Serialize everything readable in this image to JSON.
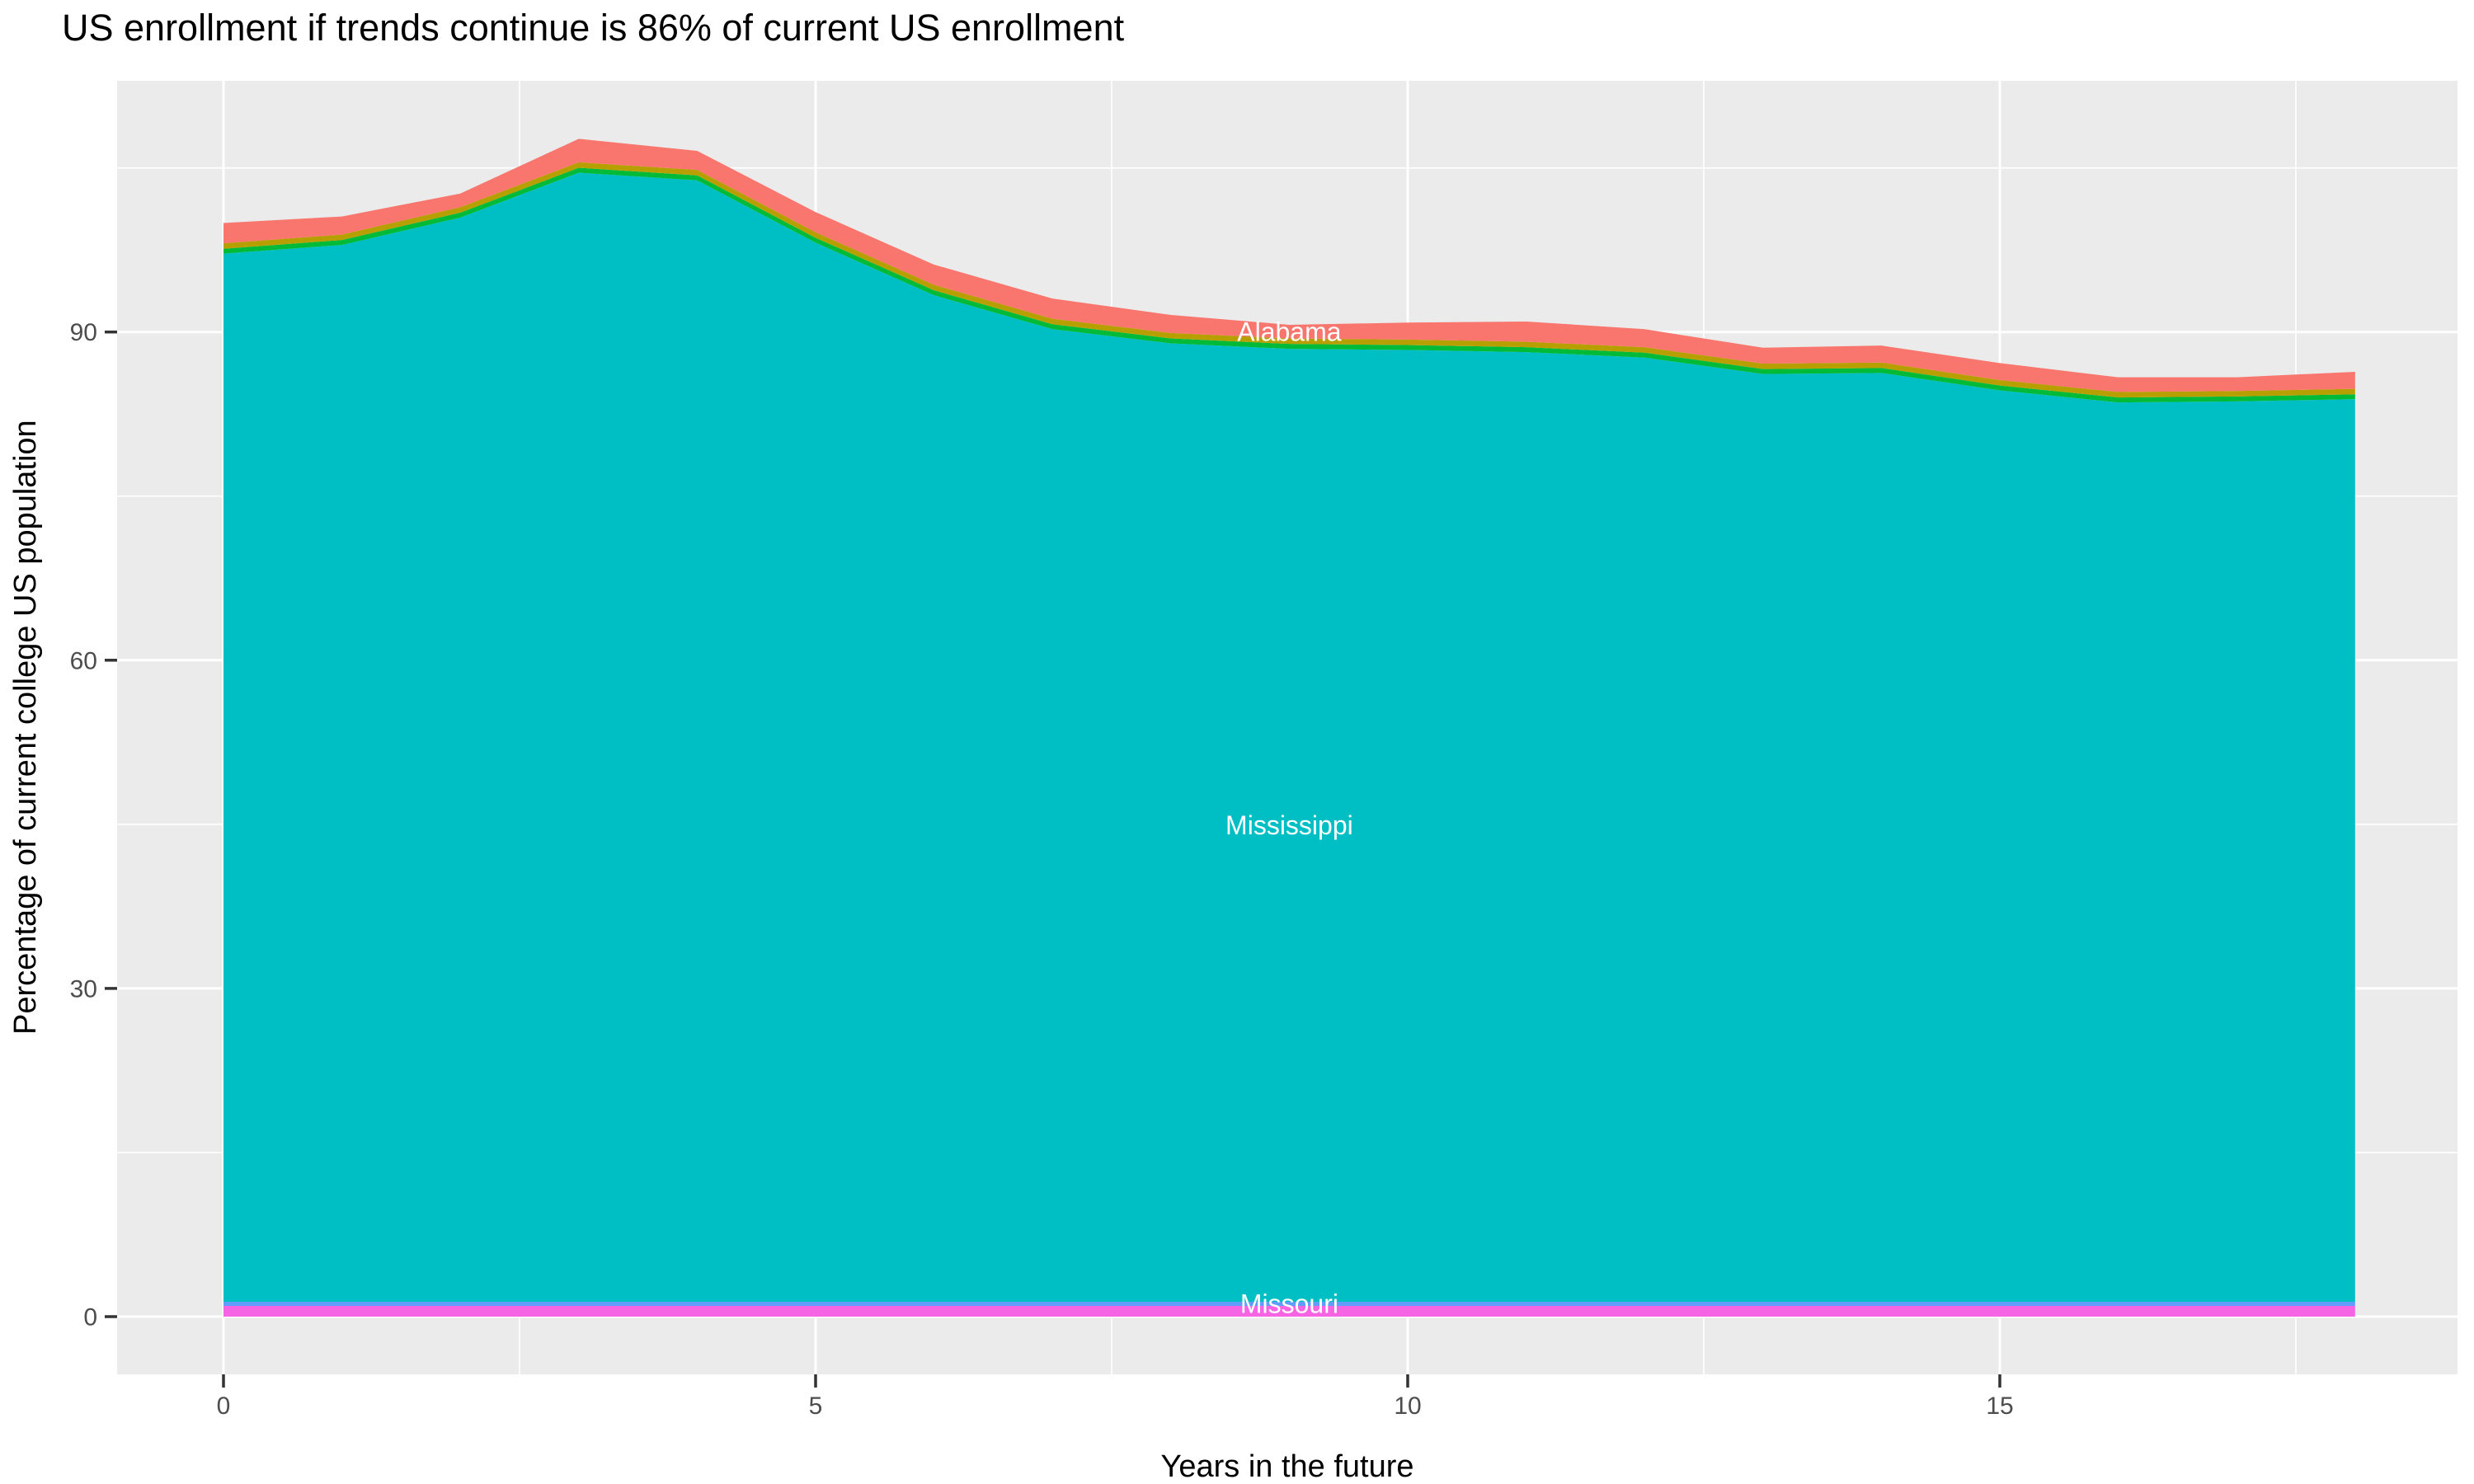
{
  "title": "US enrollment if trends continue is 86% of current US enrollment",
  "axes": {
    "x_tick_labels": [
      "0",
      "5",
      "10",
      "15"
    ],
    "y_tick_labels": [
      "0",
      "30",
      "60",
      "90"
    ]
  },
  "colors": {
    "panel_background": "#EBEBEB",
    "gridline": "#FFFFFF",
    "tick_mark": "#333333",
    "tick_label": "#4D4D4D",
    "title_text": "#000000",
    "area_label_text": "#FFFFFF"
  },
  "chart_data": {
    "type": "area",
    "stacked": true,
    "title": "US enrollment if trends continue is 86% of current US enrollment",
    "xlabel": "Years in the future",
    "ylabel": "Percentage of current college US population",
    "x": [
      0,
      1,
      2,
      3,
      4,
      5,
      6,
      7,
      8,
      9,
      10,
      11,
      12,
      13,
      14,
      15,
      16,
      17,
      18
    ],
    "x_ticks": [
      0,
      5,
      10,
      15
    ],
    "x_minor_ticks": [
      2.5,
      7.5,
      12.5,
      17.5
    ],
    "y_ticks": [
      0,
      30,
      60,
      90
    ],
    "y_minor_ticks": [
      15,
      45,
      75,
      105
    ],
    "xlim": [
      -0.9,
      18.9
    ],
    "ylim": [
      -5.4,
      113.0
    ],
    "grid": true,
    "legend": "none",
    "series": [
      {
        "name": "unlabeled-bottom",
        "label": "",
        "color": "#F564E3",
        "values": [
          0.98,
          0.98,
          0.98,
          0.98,
          0.98,
          0.98,
          0.98,
          0.98,
          0.98,
          0.98,
          0.98,
          0.98,
          0.98,
          0.98,
          0.98,
          0.98,
          0.98,
          0.98,
          0.98
        ]
      },
      {
        "name": "Missouri",
        "label": "Missouri",
        "color": "#619CFF",
        "values": [
          0.38,
          0.38,
          0.38,
          0.38,
          0.38,
          0.38,
          0.38,
          0.38,
          0.38,
          0.38,
          0.38,
          0.38,
          0.38,
          0.38,
          0.38,
          0.38,
          0.38,
          0.38,
          0.38
        ]
      },
      {
        "name": "Mississippi",
        "label": "Mississippi",
        "color": "#00BFC4",
        "values": [
          95.8,
          96.6,
          99.1,
          103.2,
          102.5,
          96.8,
          92.0,
          88.9,
          87.6,
          87.1,
          87.0,
          86.8,
          86.3,
          84.8,
          84.9,
          83.3,
          82.2,
          82.3,
          82.5
        ]
      },
      {
        "name": "unlabeled-green",
        "label": "",
        "color": "#00BA38",
        "values": [
          0.45,
          0.45,
          0.45,
          0.45,
          0.45,
          0.45,
          0.45,
          0.45,
          0.45,
          0.45,
          0.45,
          0.45,
          0.45,
          0.45,
          0.45,
          0.45,
          0.45,
          0.45,
          0.45
        ]
      },
      {
        "name": "unlabeled-olive",
        "label": "",
        "color": "#B79F00",
        "values": [
          0.5,
          0.5,
          0.5,
          0.5,
          0.5,
          0.5,
          0.5,
          0.5,
          0.5,
          0.5,
          0.5,
          0.5,
          0.5,
          0.5,
          0.5,
          0.5,
          0.5,
          0.5,
          0.5
        ]
      },
      {
        "name": "Alabama",
        "label": "Alabama",
        "color": "#F8766D",
        "values": [
          1.85,
          1.65,
          1.25,
          2.15,
          1.75,
          1.85,
          1.85,
          1.85,
          1.65,
          1.25,
          1.55,
          1.85,
          1.65,
          1.45,
          1.55,
          1.55,
          1.35,
          1.25,
          1.55
        ]
      }
    ],
    "annotations": [
      {
        "text": "Alabama",
        "x": 9,
        "series": "Alabama"
      },
      {
        "text": "Mississippi",
        "x": 9,
        "series": "Mississippi"
      },
      {
        "text": "Missouri",
        "x": 9,
        "series": "Missouri"
      }
    ]
  }
}
